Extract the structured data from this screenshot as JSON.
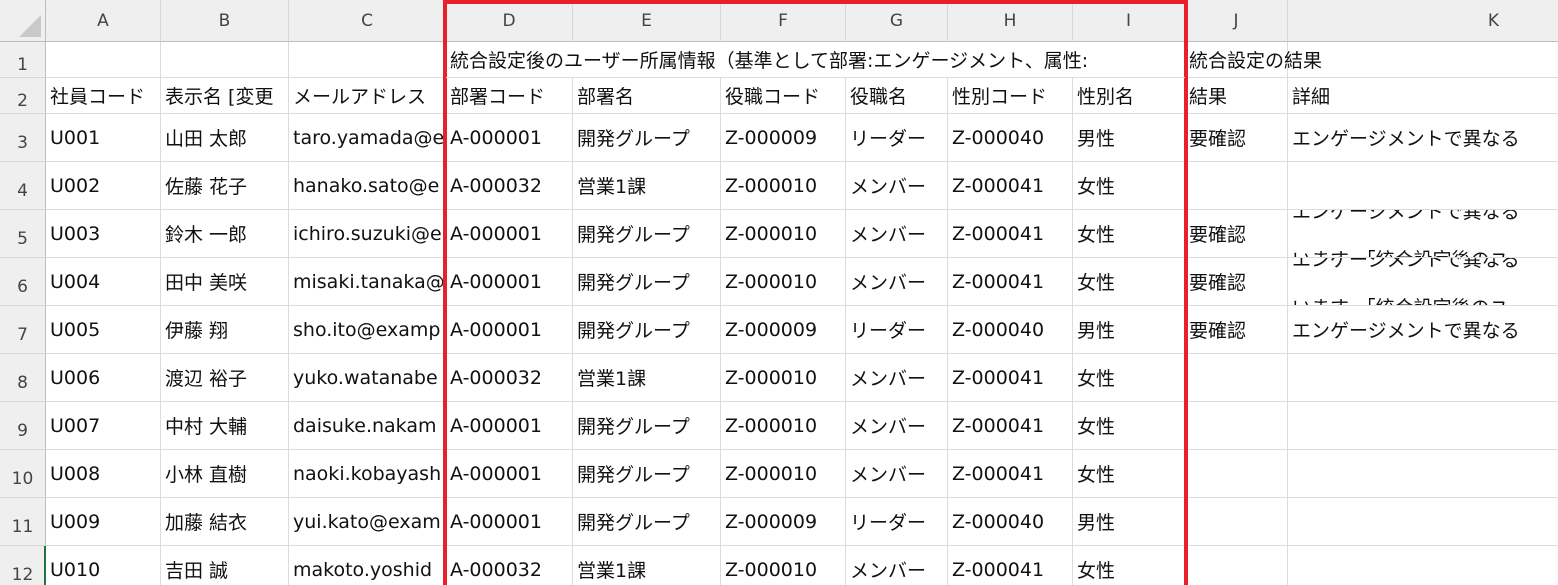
{
  "columns": [
    "A",
    "B",
    "C",
    "D",
    "E",
    "F",
    "G",
    "H",
    "I",
    "J",
    "K"
  ],
  "row_numbers": [
    "1",
    "2",
    "3",
    "4",
    "5",
    "6",
    "7",
    "8",
    "9",
    "10",
    "11",
    "12"
  ],
  "row1": {
    "D": "統合設定後のユーザー所属情報（基準として部署:エンゲージメント、属性:",
    "J": "統合設定の結果"
  },
  "headers": [
    "社員コード",
    "表示名 [変更",
    "メールアドレス",
    "部署コード",
    "部署名",
    "役職コード",
    "役職名",
    "性別コード",
    "性別名",
    "結果",
    "詳細"
  ],
  "rows": [
    [
      "U001",
      "山田 太郎",
      "taro.yamada@e",
      "A-000001",
      "開発グループ",
      "Z-000009",
      "リーダー",
      "Z-000040",
      "男性",
      "要確認",
      "エンゲージメントで異なる"
    ],
    [
      "U002",
      "佐藤 花子",
      "hanako.sato@e",
      "A-000032",
      "営業1課",
      "Z-000010",
      "メンバー",
      "Z-000041",
      "女性",
      "",
      ""
    ],
    [
      "U003",
      "鈴木 一郎",
      "ichiro.suzuki@e",
      "A-000001",
      "開発グループ",
      "Z-000010",
      "メンバー",
      "Z-000041",
      "女性",
      "要確認",
      "エンゲージメントで異なる\nいます。「統合設定後のユ"
    ],
    [
      "U004",
      "田中 美咲",
      "misaki.tanaka@",
      "A-000001",
      "開発グループ",
      "Z-000010",
      "メンバー",
      "Z-000041",
      "女性",
      "要確認",
      "エンゲージメントで異なる\nいます。「統合設定後のユ"
    ],
    [
      "U005",
      "伊藤 翔",
      "sho.ito@examp",
      "A-000001",
      "開発グループ",
      "Z-000009",
      "リーダー",
      "Z-000040",
      "男性",
      "要確認",
      "エンゲージメントで異なる"
    ],
    [
      "U006",
      "渡辺 裕子",
      "yuko.watanabe",
      "A-000032",
      "営業1課",
      "Z-000010",
      "メンバー",
      "Z-000041",
      "女性",
      "",
      ""
    ],
    [
      "U007",
      "中村 大輔",
      "daisuke.nakam",
      "A-000001",
      "開発グループ",
      "Z-000010",
      "メンバー",
      "Z-000041",
      "女性",
      "",
      ""
    ],
    [
      "U008",
      "小林 直樹",
      "naoki.kobayash",
      "A-000001",
      "開発グループ",
      "Z-000010",
      "メンバー",
      "Z-000041",
      "女性",
      "",
      ""
    ],
    [
      "U009",
      "加藤 結衣",
      "yui.kato@exam",
      "A-000001",
      "開発グループ",
      "Z-000009",
      "リーダー",
      "Z-000040",
      "男性",
      "",
      ""
    ],
    [
      "U010",
      "吉田 誠",
      "makoto.yoshid",
      "A-000032",
      "営業1課",
      "Z-000010",
      "メンバー",
      "Z-000041",
      "女性",
      "",
      ""
    ]
  ],
  "colors": {
    "highlight_border": "#e8202a",
    "gridline": "#dcdcdc",
    "header_bg": "#efefef",
    "selection": "#217346"
  }
}
